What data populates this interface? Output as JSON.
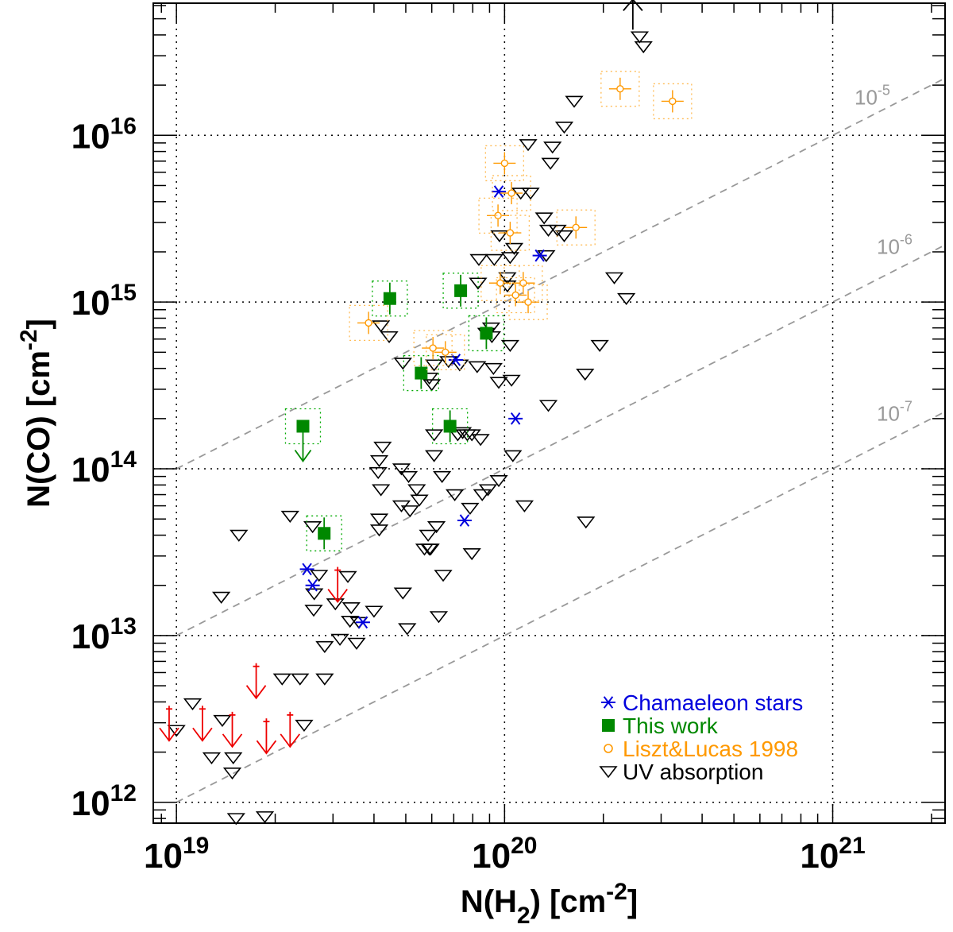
{
  "chart_data": {
    "type": "scatter",
    "xlabel": {
      "base": "N(H",
      "sub": "2",
      "unit": ") [cm",
      "sup": "-2",
      "close": "]"
    },
    "ylabel": {
      "base": "N(CO) [cm",
      "sup": "-2",
      "close": "]"
    },
    "x_axis": {
      "scale": "log",
      "range": [
        8.5e+18,
        2.2e+21
      ],
      "ticks": [
        {
          "value": 1e+19,
          "base": "10",
          "exp": "19"
        },
        {
          "value": 1e+20,
          "base": "10",
          "exp": "20"
        },
        {
          "value": 1e+21,
          "base": "10",
          "exp": "21"
        }
      ]
    },
    "y_axis": {
      "scale": "log",
      "range": [
        750000000000.0,
        6.2e+16
      ],
      "ticks": [
        {
          "value": 1000000000000.0,
          "base": "10",
          "exp": "12"
        },
        {
          "value": 10000000000000.0,
          "base": "10",
          "exp": "13"
        },
        {
          "value": 100000000000000.0,
          "base": "10",
          "exp": "14"
        },
        {
          "value": 1000000000000000.0,
          "base": "10",
          "exp": "15"
        },
        {
          "value": 1e+16,
          "base": "10",
          "exp": "16"
        }
      ]
    },
    "grid": true,
    "reference_lines": [
      {
        "ratio": 1e-05,
        "base": "10",
        "exp": "-5"
      },
      {
        "ratio": 1e-06,
        "base": "10",
        "exp": "-6"
      },
      {
        "ratio": 1e-07,
        "base": "10",
        "exp": "-7"
      }
    ],
    "legend": {
      "position": "bottom-right",
      "entries": [
        {
          "label": "Chamaeleon stars",
          "color": "#0000dd",
          "marker": "asterisk"
        },
        {
          "label": "This work",
          "color": "#008800",
          "marker": "square"
        },
        {
          "label": "Liszt&Lucas 1998",
          "color": "#ff9900",
          "marker": "circle"
        },
        {
          "label": "UV absorption",
          "color": "#000000",
          "marker": "down-triangle"
        }
      ]
    },
    "series": [
      {
        "name": "UV absorption",
        "marker": "down-triangle",
        "color": "#000000",
        "points": [
          [
            1e+19,
            2700000000000.0
          ],
          [
            1.12e+19,
            3900000000000.0
          ],
          [
            1.28e+19,
            1850000000000.0
          ],
          [
            1.38e+19,
            3100000000000.0
          ],
          [
            1.49e+19,
            1850000000000.0
          ],
          [
            1.37e+19,
            17000000000000.0
          ],
          [
            1.48e+19,
            1500000000000.0
          ],
          [
            1.52e+19,
            800000000000.0
          ],
          [
            1.55e+19,
            40000000000000.0
          ],
          [
            1.86e+19,
            820000000000.0
          ],
          [
            2.1e+19,
            5500000000000.0
          ],
          [
            2.22e+19,
            52000000000000.0
          ],
          [
            2.45e+19,
            2900000000000.0
          ],
          [
            2.38e+19,
            5500000000000.0
          ],
          [
            2.72e+19,
            23000000000000.0
          ],
          [
            2.6e+19,
            45000000000000.0
          ],
          [
            2.62e+19,
            14200000000000.0
          ],
          [
            2.63e+19,
            17800000000000.0
          ],
          [
            2.83e+19,
            5500000000000.0
          ],
          [
            2.83e+19,
            8600000000000.0
          ],
          [
            3.05e+19,
            15500000000000.0
          ],
          [
            3.15e+19,
            9500000000000.0
          ],
          [
            3.33e+19,
            22600000000000.0
          ],
          [
            3.41e+19,
            14700000000000.0
          ],
          [
            3.54e+19,
            9000000000000.0
          ],
          [
            3.38e+19,
            12200000000000.0
          ],
          [
            3.6e+19,
            12000000000000.0
          ],
          [
            4e+19,
            14000000000000.0
          ],
          [
            4.2e+19,
            720000000000000.0
          ],
          [
            4.25e+19,
            135000000000000.0
          ],
          [
            4.15e+19,
            112000000000000.0
          ],
          [
            4.12e+19,
            95000000000000.0
          ],
          [
            4.2e+19,
            75000000000000.0
          ],
          [
            4.15e+19,
            50000000000000.0
          ],
          [
            4.15e+19,
            43000000000000.0
          ],
          [
            4.45e+19,
            620000000000000.0
          ],
          [
            4.9e+19,
            430000000000000.0
          ],
          [
            4.9e+19,
            18000000000000.0
          ],
          [
            5.05e+19,
            11000000000000.0
          ],
          [
            4.85e+19,
            100000000000000.0
          ],
          [
            4.85e+19,
            60000000000000.0
          ],
          [
            5.1e+19,
            90000000000000.0
          ],
          [
            5.15e+19,
            56000000000000.0
          ],
          [
            5.4e+19,
            75000000000000.0
          ],
          [
            5.5e+19,
            65000000000000.0
          ],
          [
            5.9e+19,
            350000000000000.0
          ],
          [
            6e+19,
            320000000000000.0
          ],
          [
            6.1e+19,
            420000000000000.0
          ],
          [
            6.1e+19,
            160000000000000.0
          ],
          [
            6.1e+19,
            120000000000000.0
          ],
          [
            6.2e+19,
            45000000000000.0
          ],
          [
            5.85e+19,
            40000000000000.0
          ],
          [
            5.9e+19,
            33000000000000.0
          ],
          [
            5.7e+19,
            33000000000000.0
          ],
          [
            5.95e+19,
            33000000000000.0
          ],
          [
            6.3e+19,
            13000000000000.0
          ],
          [
            6.45e+19,
            90000000000000.0
          ],
          [
            6.5e+19,
            23000000000000.0
          ],
          [
            6.75e+19,
            440000000000000.0
          ],
          [
            7.05e+19,
            70000000000000.0
          ],
          [
            7.3e+19,
            420000000000000.0
          ],
          [
            7.2e+19,
            160000000000000.0
          ],
          [
            7.45e+19,
            165000000000000.0
          ],
          [
            7.7e+19,
            160000000000000.0
          ],
          [
            7.95e+19,
            160000000000000.0
          ],
          [
            7.85e+19,
            58000000000000.0
          ],
          [
            7.95e+19,
            31000000000000.0
          ],
          [
            8.3e+19,
            1300000000000000.0
          ],
          [
            8.25e+19,
            410000000000000.0
          ],
          [
            8.45e+19,
            150000000000000.0
          ],
          [
            8.55e+19,
            70000000000000.0
          ],
          [
            8.9e+19,
            75000000000000.0
          ],
          [
            9.3e+19,
            1800000000000000.0
          ],
          [
            8.35e+19,
            1800000000000000.0
          ],
          [
            8.8e+19,
            650000000000000.0
          ],
          [
            9.15e+19,
            620000000000000.0
          ],
          [
            9.65e+19,
            2500000000000000.0
          ],
          [
            9.25e+19,
            400000000000000.0
          ],
          [
            9.6e+19,
            330000000000000.0
          ],
          [
            9.6e+19,
            85000000000000.0
          ],
          [
            9.1e+19,
            700000000000000.0
          ],
          [
            1.04e+20,
            1850000000000000.0
          ],
          [
            1.02e+20,
            1400000000000000.0
          ],
          [
            1.02e+20,
            1250000000000000.0
          ],
          [
            1.12e+20,
            4500000000000000.0
          ],
          [
            1.18e+20,
            8800000000000000.0
          ],
          [
            1.04e+20,
            550000000000000.0
          ],
          [
            1.05e+20,
            340000000000000.0
          ],
          [
            1.06e+20,
            120000000000000.0
          ],
          [
            1.15e+20,
            60000000000000.0
          ],
          [
            1.2e+20,
            4500000000000000.0
          ],
          [
            1.32e+20,
            3200000000000000.0
          ],
          [
            1.34e+20,
            1900000000000000.0
          ],
          [
            1.36e+20,
            240000000000000.0
          ],
          [
            1.36e+20,
            2700000000000000.0
          ],
          [
            1.52e+20,
            1.12e+16
          ],
          [
            1.38e+20,
            6800000000000000.0
          ],
          [
            1.4e+20,
            8500000000000000.0
          ],
          [
            1.45e+20,
            2700000000000000.0
          ],
          [
            1.52e+20,
            2500000000000000.0
          ],
          [
            1.63e+20,
            1.6e+16
          ],
          [
            1.76e+20,
            370000000000000.0
          ],
          [
            1.95e+20,
            550000000000000.0
          ],
          [
            1.77e+20,
            48000000000000.0
          ],
          [
            1.07e+20,
            2100000000000000.0
          ],
          [
            2.16e+20,
            1400000000000000.0
          ],
          [
            2.35e+20,
            1050000000000000.0
          ],
          [
            2.58e+20,
            3.9e+16
          ],
          [
            2.65e+20,
            3.4e+16
          ]
        ]
      },
      {
        "name": "Chamaeleon stars",
        "marker": "asterisk",
        "color": "#0000dd",
        "points": [
          [
            2.5e+19,
            25000000000000.0
          ],
          [
            2.6e+19,
            20000000000000.0
          ],
          [
            3.7e+19,
            12000000000000.0
          ],
          [
            7.1e+19,
            450000000000000.0
          ],
          [
            7.55e+19,
            49000000000000.0
          ],
          [
            9.6e+19,
            4600000000000000.0
          ],
          [
            1.08e+20,
            200000000000000.0
          ],
          [
            1.28e+20,
            1900000000000000.0
          ]
        ]
      },
      {
        "name": "This work",
        "marker": "square",
        "color": "#008800",
        "points": [
          [
            2.43e+19,
            180000000000000.0,
            "upper"
          ],
          [
            2.82e+19,
            41000000000000.0
          ],
          [
            4.47e+19,
            1050000000000000.0
          ],
          [
            5.57e+19,
            375000000000000.0
          ],
          [
            6.82e+19,
            180000000000000.0
          ],
          [
            7.35e+19,
            1170000000000000.0
          ],
          [
            8.8e+19,
            650000000000000.0
          ]
        ]
      },
      {
        "name": "Liszt&Lucas 1998",
        "marker": "circle",
        "color": "#ff9900",
        "points": [
          [
            3.85e+19,
            750000000000000.0
          ],
          [
            6.05e+19,
            530000000000000.0
          ],
          [
            6.6e+19,
            500000000000000.0
          ],
          [
            9.55e+19,
            3300000000000000.0
          ],
          [
            9.7e+19,
            1300000000000000.0
          ],
          [
            1e+20,
            6800000000000000.0
          ],
          [
            1.04e+20,
            2600000000000000.0
          ],
          [
            1.05e+20,
            4500000000000000.0
          ],
          [
            1.08e+20,
            1100000000000000.0
          ],
          [
            1.14e+20,
            1300000000000000.0
          ],
          [
            1.18e+20,
            1000000000000000.0
          ],
          [
            1.65e+20,
            2800000000000000.0
          ],
          [
            2.25e+20,
            1.9e+16
          ],
          [
            3.25e+20,
            1.6e+16
          ]
        ]
      },
      {
        "name": "Upper limits",
        "marker": "arrow",
        "color": "#ee0000",
        "points": [
          [
            9.5e+18,
            2500000000000.0
          ],
          [
            1.2e+19,
            2500000000000.0
          ],
          [
            1.48e+19,
            2300000000000.0
          ],
          [
            1.88e+19,
            2100000000000.0
          ],
          [
            2.22e+19,
            2300000000000.0
          ],
          [
            1.75e+19,
            4500000000000.0
          ],
          [
            3.1e+19,
            17000000000000.0
          ]
        ]
      },
      {
        "name": "Lower limit",
        "marker": "up-arrow",
        "color": "#000000",
        "points": [
          [
            2.46e+20,
            4.3e+16
          ]
        ]
      }
    ]
  }
}
